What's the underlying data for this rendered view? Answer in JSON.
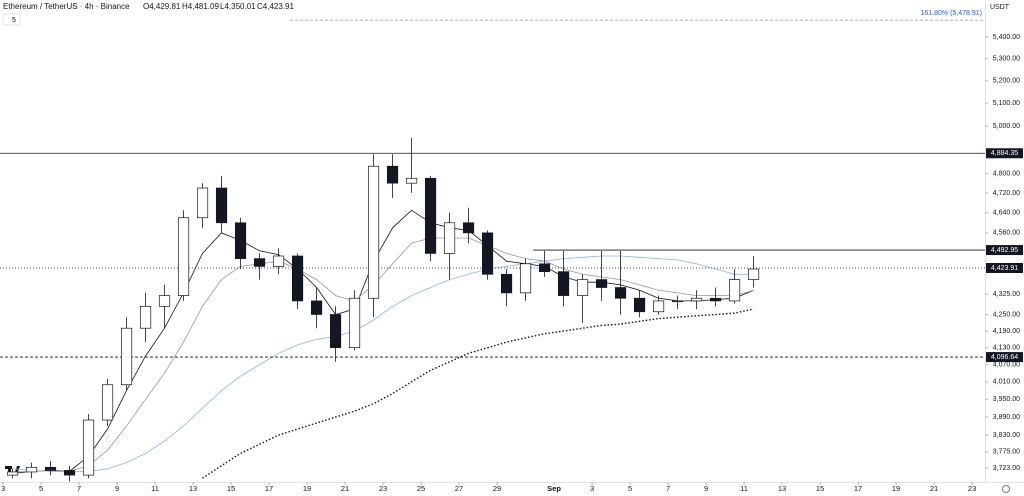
{
  "chart_data": {
    "type": "candlestick",
    "title": "Ethereum / TetherUS · 4h · Binance",
    "ohlc_labels": [
      "O4,429.81",
      "H4,481.09",
      "L4,350.01",
      "C4,423.91"
    ],
    "indicator_count": "5",
    "currency": "USDT",
    "x": [
      3.5,
      4.5,
      5.5,
      6.5,
      7.5,
      8.5,
      9.5,
      10.5,
      11.5,
      12.5,
      13.5,
      14.5,
      15.5,
      16.5,
      17.5,
      18.5,
      19.5,
      20.5,
      21.5,
      22.5,
      23.5,
      24.5,
      25.5,
      26.5,
      27.5,
      28.5,
      29.5,
      30.5,
      31.5,
      32.5,
      33.5,
      34.5,
      35.5,
      36.5,
      37.5,
      38.5,
      39.5,
      40.5,
      41.5,
      42.5
    ],
    "open": [
      3700,
      3710,
      3725,
      3715,
      3700,
      3880,
      4000,
      4200,
      4280,
      4320,
      4620,
      4740,
      4600,
      4460,
      4430,
      4470,
      4300,
      4250,
      4130,
      4310,
      4830,
      4760,
      4780,
      4480,
      4600,
      4560,
      4400,
      4330,
      4440,
      4410,
      4320,
      4380,
      4350,
      4310,
      4260,
      4300,
      4300,
      4310,
      4300,
      4380
    ],
    "high": [
      3720,
      3740,
      3745,
      3730,
      3900,
      4020,
      4240,
      4330,
      4360,
      4650,
      4760,
      4790,
      4620,
      4480,
      4500,
      4480,
      4350,
      4280,
      4340,
      4880,
      4880,
      4950,
      4790,
      4640,
      4660,
      4570,
      4420,
      4460,
      4490,
      4490,
      4400,
      4490,
      4490,
      4340,
      4320,
      4320,
      4340,
      4350,
      4420,
      4470
    ],
    "low": [
      3690,
      3690,
      3700,
      3680,
      3690,
      3860,
      3980,
      4150,
      4200,
      4300,
      4580,
      4560,
      4420,
      4380,
      4400,
      4270,
      4200,
      4080,
      4120,
      4240,
      4700,
      4720,
      4450,
      4380,
      4520,
      4380,
      4280,
      4300,
      4390,
      4280,
      4220,
      4300,
      4250,
      4240,
      4250,
      4270,
      4270,
      4280,
      4290,
      4350
    ],
    "close": [
      3710,
      3725,
      3715,
      3700,
      3880,
      4000,
      4200,
      4280,
      4320,
      4620,
      4740,
      4600,
      4460,
      4430,
      4470,
      4300,
      4250,
      4130,
      4310,
      4830,
      4760,
      4780,
      4480,
      4600,
      4560,
      4400,
      4330,
      4440,
      4410,
      4320,
      4380,
      4350,
      4310,
      4260,
      4300,
      4300,
      4310,
      4300,
      4380,
      4420
    ],
    "up_color": "#ffffff",
    "down_color": "#131722",
    "outline_color": "#131722",
    "series": [
      {
        "color": "#131722",
        "style": "solid",
        "values": [
          3705,
          3712,
          3715,
          3712,
          3760,
          3850,
          3980,
          4100,
          4200,
          4330,
          4480,
          4560,
          4530,
          4490,
          4475,
          4420,
          4350,
          4250,
          4270,
          4450,
          4580,
          4650,
          4600,
          4580,
          4570,
          4510,
          4450,
          4440,
          4430,
          4390,
          4370,
          4370,
          4360,
          4340,
          4310,
          4300,
          4300,
          4305,
          4310,
          4340
        ]
      },
      {
        "color": "#9a9a9a",
        "style": "solid",
        "values": [
          3710,
          3712,
          3713,
          3712,
          3730,
          3780,
          3860,
          3950,
          4040,
          4150,
          4280,
          4380,
          4430,
          4440,
          4450,
          4420,
          4380,
          4320,
          4300,
          4360,
          4440,
          4520,
          4540,
          4540,
          4540,
          4510,
          4480,
          4460,
          4450,
          4420,
          4400,
          4390,
          4380,
          4360,
          4340,
          4330,
          4320,
          4320,
          4320,
          4340
        ]
      },
      {
        "color": "#90b4e8",
        "style": "solid",
        "values": [
          3720,
          3715,
          3712,
          3710,
          3712,
          3720,
          3740,
          3770,
          3810,
          3860,
          3920,
          3980,
          4030,
          4070,
          4110,
          4140,
          4160,
          4170,
          4190,
          4230,
          4280,
          4320,
          4350,
          4380,
          4400,
          4420,
          4430,
          4440,
          4450,
          4460,
          4465,
          4470,
          4470,
          4465,
          4460,
          4455,
          4440,
          4420,
          4400,
          4400
        ]
      },
      {
        "color": "#131722",
        "style": "dotted",
        "values": [
          null,
          null,
          null,
          null,
          null,
          null,
          null,
          null,
          null,
          null,
          3690,
          3730,
          3770,
          3800,
          3830,
          3850,
          3870,
          3890,
          3910,
          3935,
          3970,
          4010,
          4050,
          4080,
          4110,
          4130,
          4150,
          4165,
          4180,
          4190,
          4200,
          4210,
          4215,
          4225,
          4235,
          4240,
          4245,
          4250,
          4255,
          4270
        ]
      }
    ],
    "levels": [
      {
        "value": 5478.91,
        "label": "161.80% (5,478.91)",
        "style": "fib",
        "x_start": 18.1
      },
      {
        "value": 4884.35,
        "label": "4,884.35",
        "style": "solid"
      },
      {
        "value": 4492.95,
        "label": "4,492.95",
        "style": "solid",
        "x_start": 30.9
      },
      {
        "value": 4423.91,
        "label": "4,423.91",
        "style": "dotted"
      },
      {
        "value": 4096.64,
        "label": "4,096.64",
        "style": "dashed"
      }
    ],
    "xlim": [
      2.84,
      54.68
    ],
    "xticks": [
      3,
      5,
      7,
      9,
      11,
      13,
      15,
      17,
      19,
      21,
      23,
      25,
      27,
      29,
      {
        "value": 32,
        "label": "Sep"
      },
      {
        "value": 34,
        "label": "3"
      },
      {
        "value": 36,
        "label": "5"
      },
      {
        "value": 38,
        "label": "7"
      },
      {
        "value": 40,
        "label": "9"
      },
      {
        "value": 42,
        "label": "11"
      },
      {
        "value": 44,
        "label": "13"
      },
      {
        "value": 46,
        "label": "15"
      },
      {
        "value": 48,
        "label": "17"
      },
      {
        "value": 50,
        "label": "19"
      },
      {
        "value": 52,
        "label": "21"
      },
      {
        "value": 54,
        "label": "23"
      }
    ],
    "ylim": [
      3678,
      5575
    ],
    "log_scale": true,
    "yticks": [
      {
        "value": 5400,
        "label": "5,400.00"
      },
      {
        "value": 5300,
        "label": "5,300.00"
      },
      {
        "value": 5200,
        "label": "5,200.00"
      },
      {
        "value": 5100,
        "label": "5,100.00"
      },
      {
        "value": 5000,
        "label": "5,000.00"
      },
      {
        "value": 4800,
        "label": "4,800.00"
      },
      {
        "value": 4720,
        "label": "4,720.00"
      },
      {
        "value": 4640,
        "label": "4,640.00"
      },
      {
        "value": 4560,
        "label": "4,560.00"
      },
      {
        "value": 4325,
        "label": "4,325.00"
      },
      {
        "value": 4250,
        "label": "4,250.00"
      },
      {
        "value": 4190,
        "label": "4,190.00"
      },
      {
        "value": 4130,
        "label": "4,130.00"
      },
      {
        "value": 4070,
        "label": "4,070.00"
      },
      {
        "value": 4010,
        "label": "4,010.00"
      },
      {
        "value": 3950,
        "label": "3,950.00"
      },
      {
        "value": 3890,
        "label": "3,890.00"
      },
      {
        "value": 3830,
        "label": "3,830.00"
      },
      {
        "value": 3775,
        "label": "3,775.00"
      },
      {
        "value": 3723,
        "label": "3,723.00"
      }
    ],
    "grid": false
  }
}
